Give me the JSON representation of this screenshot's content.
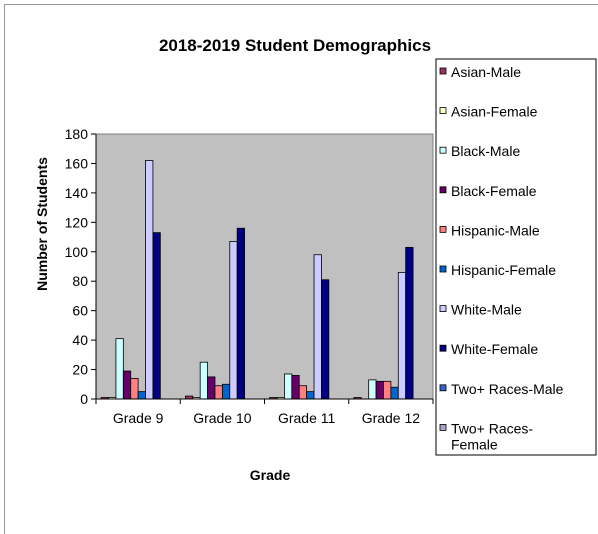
{
  "chart_data": {
    "type": "bar",
    "title": "2018-2019 Student Demographics",
    "xlabel": "Grade",
    "ylabel": "Number of Students",
    "ylim": [
      0,
      180
    ],
    "yticks": [
      "0",
      "20",
      "40",
      "60",
      "80",
      "100",
      "120",
      "140",
      "160",
      "180"
    ],
    "grid": false,
    "legend_position": "right",
    "categories": [
      "Grade 9",
      "Grade 10",
      "Grade 11",
      "Grade 12"
    ],
    "series": [
      {
        "name": "Asian-Male",
        "color": "#993366",
        "values": [
          1,
          2,
          1,
          1
        ]
      },
      {
        "name": "Asian-Female",
        "color": "#ffffcc",
        "values": [
          1,
          1,
          1,
          0
        ]
      },
      {
        "name": "Black-Male",
        "color": "#ccffff",
        "values": [
          41,
          25,
          17,
          13
        ]
      },
      {
        "name": "Black-Female",
        "color": "#660066",
        "values": [
          19,
          15,
          16,
          12
        ]
      },
      {
        "name": "Hispanic-Male",
        "color": "#ff8080",
        "values": [
          14,
          9,
          9,
          12
        ]
      },
      {
        "name": "Hispanic-Female",
        "color": "#0066cc",
        "values": [
          5,
          10,
          5,
          8
        ]
      },
      {
        "name": "White-Male",
        "color": "#ccccff",
        "values": [
          162,
          107,
          98,
          86
        ]
      },
      {
        "name": "White-Female",
        "color": "#000080",
        "values": [
          113,
          116,
          81,
          103
        ]
      },
      {
        "name": "Two+ Races-Male",
        "color": "#3366cc",
        "values": [
          0,
          0,
          0,
          0
        ]
      },
      {
        "name": "Two+ Races-Female",
        "color": "#a6a6c8",
        "values": [
          0,
          0,
          0,
          0
        ]
      }
    ],
    "legend_labels": [
      [
        "Asian-Male"
      ],
      [
        "Asian-Female"
      ],
      [
        "Black-Male"
      ],
      [
        "Black-Female"
      ],
      [
        "Hispanic-Male"
      ],
      [
        "Hispanic-Female"
      ],
      [
        "White-Male"
      ],
      [
        "White-Female"
      ],
      [
        "Two+ Races-Male"
      ],
      [
        "Two+ Races-",
        "Female"
      ]
    ],
    "colors": {
      "plot_background": "#c0c0c0",
      "axis": "#000000"
    }
  }
}
